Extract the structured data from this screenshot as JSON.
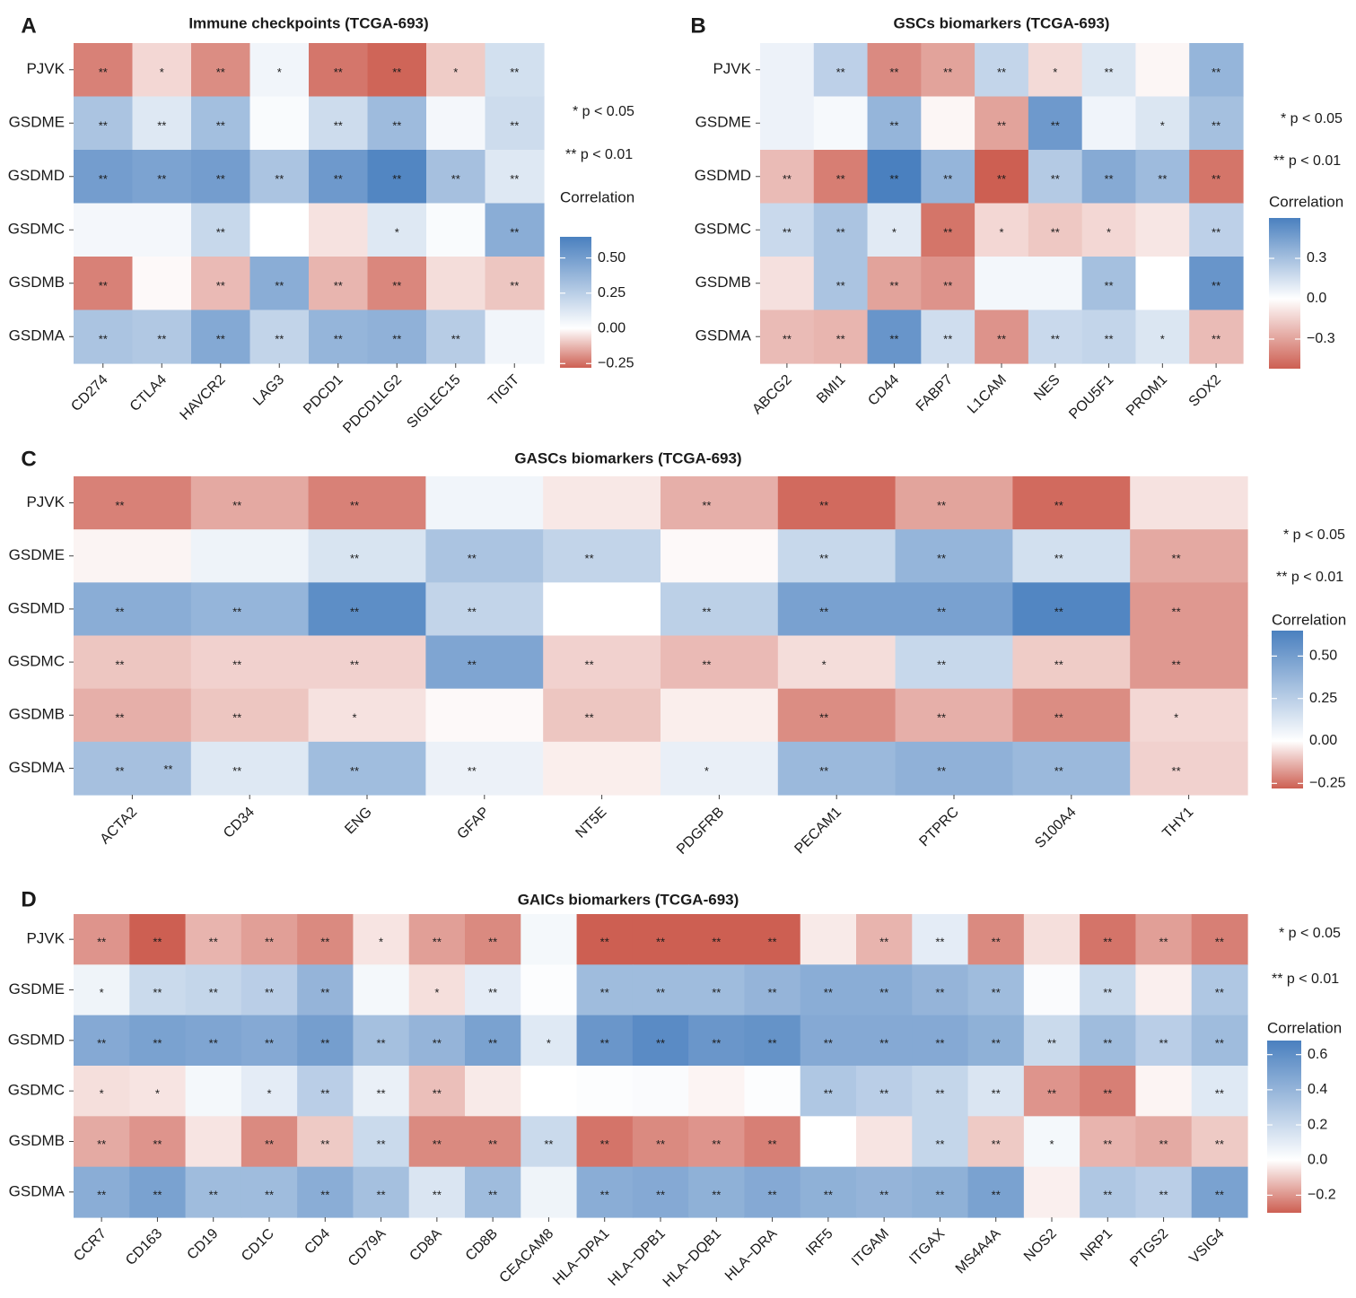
{
  "chart_data": [
    {
      "type": "heatmap",
      "panel_label": "A",
      "title": "Immune checkpoints (TCGA-693)",
      "rows": [
        "PJVK",
        "GSDME",
        "GSDMD",
        "GSDMC",
        "GSDMB",
        "GSDMA"
      ],
      "columns": [
        "CD274",
        "CTLA4",
        "HAVCR2",
        "LAG3",
        "PDCD1",
        "PDCD1LG2",
        "SIGLEC15",
        "TIGIT"
      ],
      "values": [
        [
          -0.22,
          -0.07,
          -0.2,
          0.05,
          -0.24,
          -0.27,
          -0.09,
          0.16
        ],
        [
          0.3,
          0.12,
          0.33,
          0.02,
          0.18,
          0.35,
          0.04,
          0.18
        ],
        [
          0.5,
          0.47,
          0.5,
          0.3,
          0.52,
          0.62,
          0.32,
          0.12
        ],
        [
          0.04,
          0.04,
          0.2,
          0.0,
          -0.05,
          0.12,
          0.02,
          0.42
        ],
        [
          -0.22,
          -0.01,
          -0.12,
          0.42,
          -0.13,
          -0.21,
          -0.06,
          -0.1
        ],
        [
          0.3,
          0.28,
          0.44,
          0.22,
          0.38,
          0.4,
          0.26,
          0.05
        ]
      ],
      "stars": [
        [
          "**",
          "*",
          "**",
          "*",
          "**",
          "**",
          "*",
          "**"
        ],
        [
          "**",
          "**",
          "**",
          "",
          "**",
          "**",
          "",
          "**"
        ],
        [
          "**",
          "**",
          "**",
          "**",
          "**",
          "**",
          "**",
          "**"
        ],
        [
          "",
          "",
          "**",
          "",
          "",
          "*",
          "",
          "**"
        ],
        [
          "**",
          "",
          "**",
          "**",
          "**",
          "**",
          "",
          "**"
        ],
        [
          "**",
          "**",
          "**",
          "**",
          "**",
          "**",
          "**",
          ""
        ]
      ],
      "legend": {
        "title": "Correlation",
        "ticks": [
          0.5,
          0.25,
          0.0,
          -0.25
        ],
        "tick_labels": [
          "0.50",
          "0.25",
          "0.00",
          "−0.25"
        ],
        "range": [
          -0.28,
          0.65
        ],
        "sig_notes": [
          "* p < 0.05",
          "** p < 0.01"
        ]
      }
    },
    {
      "type": "heatmap",
      "panel_label": "B",
      "title": "GSCs biomarkers (TCGA-693)",
      "rows": [
        "PJVK",
        "GSDME",
        "GSDMD",
        "GSDMC",
        "GSDMB",
        "GSDMA"
      ],
      "columns": [
        "ABCG2",
        "BMI1",
        "CD44",
        "FABP7",
        "L1CAM",
        "NES",
        "POU5F1",
        "PROM1",
        "SOX2"
      ],
      "values": [
        [
          0.06,
          0.22,
          -0.38,
          -0.3,
          0.2,
          -0.12,
          0.12,
          -0.03,
          0.35
        ],
        [
          0.06,
          0.03,
          0.35,
          -0.03,
          -0.3,
          0.48,
          0.05,
          0.12,
          0.3
        ],
        [
          -0.22,
          -0.42,
          0.6,
          0.35,
          -0.52,
          0.25,
          0.4,
          0.32,
          -0.45
        ],
        [
          0.18,
          0.28,
          0.1,
          -0.45,
          -0.13,
          -0.18,
          -0.13,
          -0.08,
          0.22
        ],
        [
          -0.1,
          0.28,
          -0.3,
          -0.35,
          0.04,
          0.04,
          0.3,
          0.0,
          0.5
        ],
        [
          -0.22,
          -0.24,
          0.5,
          0.16,
          -0.35,
          0.18,
          0.2,
          0.12,
          -0.22
        ]
      ],
      "stars": [
        [
          "",
          "**",
          "**",
          "**",
          "**",
          "*",
          "**",
          "",
          "**"
        ],
        [
          "",
          "",
          "**",
          "",
          "**",
          "**",
          "",
          "*",
          "**"
        ],
        [
          "**",
          "**",
          "**",
          "**",
          "**",
          "**",
          "**",
          "**",
          "**"
        ],
        [
          "**",
          "**",
          "*",
          "**",
          "*",
          "**",
          "*",
          "",
          "**"
        ],
        [
          "",
          "**",
          "**",
          "**",
          "",
          "",
          "**",
          "",
          "**"
        ],
        [
          "**",
          "**",
          "**",
          "**",
          "**",
          "**",
          "**",
          "*",
          "**"
        ]
      ],
      "legend": {
        "title": "Correlation",
        "ticks": [
          0.3,
          0.0,
          -0.3
        ],
        "tick_labels": [
          "0.3",
          "0.0",
          "−0.3"
        ],
        "range": [
          -0.52,
          0.6
        ],
        "sig_notes": [
          "* p < 0.05",
          "** p < 0.01"
        ]
      }
    },
    {
      "type": "heatmap",
      "panel_label": "C",
      "title": "GASCs biomarkers (TCGA-693)",
      "rows": [
        "PJVK",
        "GSDME",
        "GSDMD",
        "GSDMC",
        "GSDMB",
        "GSDMA"
      ],
      "columns": [
        "ACTA2",
        "CD34",
        "ENG",
        "GFAP",
        "NT5E",
        "PDGFRB",
        "PECAM1",
        "PTPRC",
        "S100A4",
        "THY1"
      ],
      "values": [
        [
          -0.22,
          -0.15,
          -0.22,
          0.05,
          -0.04,
          -0.14,
          -0.26,
          -0.16,
          -0.26,
          -0.05
        ],
        [
          -0.02,
          0.06,
          0.14,
          0.3,
          0.22,
          -0.01,
          0.2,
          0.38,
          0.16,
          -0.15
        ],
        [
          0.42,
          0.38,
          0.58,
          0.22,
          0.0,
          0.24,
          0.48,
          0.48,
          0.62,
          -0.18
        ],
        [
          -0.1,
          -0.08,
          -0.08,
          0.46,
          -0.08,
          -0.12,
          -0.06,
          0.2,
          -0.09,
          -0.18
        ],
        [
          -0.14,
          -0.1,
          -0.05,
          -0.01,
          -0.1,
          -0.03,
          -0.2,
          -0.14,
          -0.2,
          -0.07
        ],
        [
          0.32,
          0.12,
          0.34,
          0.07,
          -0.03,
          0.08,
          0.36,
          0.4,
          0.36,
          -0.08
        ]
      ],
      "stars": [
        [
          "**",
          "**",
          "**",
          "",
          "",
          "**",
          "**",
          "**",
          "**",
          ""
        ],
        [
          "",
          "",
          "**",
          "**",
          "**",
          "",
          "**",
          "**",
          "**",
          "**"
        ],
        [
          "**",
          "**",
          "**",
          "**",
          "",
          "**",
          "**",
          "**",
          "**",
          "**"
        ],
        [
          "**",
          "**",
          "**",
          "**",
          "**",
          "**",
          "*",
          "**",
          "**",
          "**"
        ],
        [
          "**",
          "**",
          "*",
          "",
          "**",
          "",
          "**",
          "**",
          "**",
          "*"
        ],
        [
          "**",
          "**",
          "**",
          "**",
          "",
          "*",
          "**",
          "**",
          "**",
          "**"
        ]
      ],
      "extra_star": "**",
      "legend": {
        "title": "Correlation",
        "ticks": [
          0.5,
          0.25,
          0.0,
          -0.25
        ],
        "tick_labels": [
          "0.50",
          "0.25",
          "0.00",
          "−0.25"
        ],
        "range": [
          -0.28,
          0.65
        ],
        "sig_notes": [
          "* p < 0.05",
          "** p < 0.01"
        ]
      }
    },
    {
      "type": "heatmap",
      "panel_label": "D",
      "title": "GAICs biomarkers (TCGA-693)",
      "rows": [
        "PJVK",
        "GSDME",
        "GSDMD",
        "GSDMC",
        "GSDMB",
        "GSDMA"
      ],
      "columns": [
        "CCR7",
        "CD163",
        "CD19",
        "CD1C",
        "CD4",
        "CD79A",
        "CD8A",
        "CD8B",
        "CEACAM8",
        "HLA−DPA1",
        "HLA−DPB1",
        "HLA−DQB1",
        "HLA−DRA",
        "IRF5",
        "ITGAM",
        "ITGAX",
        "MS4A4A",
        "NOS2",
        "NRP1",
        "PTGS2",
        "VSIG4"
      ],
      "values": [
        [
          -0.2,
          -0.3,
          -0.14,
          -0.18,
          -0.22,
          -0.05,
          -0.18,
          -0.22,
          0.04,
          -0.3,
          -0.3,
          -0.3,
          -0.3,
          -0.04,
          -0.14,
          0.1,
          -0.22,
          -0.06,
          -0.26,
          -0.18,
          -0.24
        ],
        [
          0.06,
          0.2,
          0.22,
          0.26,
          0.4,
          0.04,
          -0.06,
          0.1,
          0.01,
          0.36,
          0.36,
          0.36,
          0.4,
          0.44,
          0.44,
          0.4,
          0.36,
          0.02,
          0.2,
          -0.03,
          0.3
        ],
        [
          0.46,
          0.5,
          0.48,
          0.46,
          0.52,
          0.34,
          0.4,
          0.5,
          0.12,
          0.56,
          0.62,
          0.56,
          0.58,
          0.46,
          0.46,
          0.46,
          0.42,
          0.2,
          0.36,
          0.26,
          0.36
        ],
        [
          -0.06,
          -0.05,
          0.04,
          0.1,
          0.26,
          0.08,
          -0.12,
          -0.04,
          0.0,
          0.01,
          0.02,
          -0.02,
          0.01,
          0.3,
          0.26,
          0.22,
          0.14,
          -0.2,
          -0.24,
          -0.02,
          0.12
        ],
        [
          -0.16,
          -0.2,
          -0.05,
          -0.22,
          -0.1,
          0.2,
          -0.22,
          -0.22,
          0.2,
          -0.26,
          -0.22,
          -0.2,
          -0.24,
          0.0,
          -0.05,
          0.22,
          -0.1,
          0.04,
          -0.14,
          -0.16,
          -0.1
        ],
        [
          0.44,
          0.5,
          0.36,
          0.36,
          0.44,
          0.34,
          0.14,
          0.36,
          0.06,
          0.44,
          0.46,
          0.42,
          0.46,
          0.42,
          0.4,
          0.42,
          0.5,
          -0.03,
          0.3,
          0.26,
          0.5
        ]
      ],
      "stars": [
        [
          "**",
          "**",
          "**",
          "**",
          "**",
          "*",
          "**",
          "**",
          "",
          "**",
          "**",
          "**",
          "**",
          "",
          "**",
          "**",
          "**",
          "",
          "**",
          "**",
          "**"
        ],
        [
          "*",
          "**",
          "**",
          "**",
          "**",
          "",
          "*",
          "**",
          "",
          "**",
          "**",
          "**",
          "**",
          "**",
          "**",
          "**",
          "**",
          "",
          "**",
          "",
          "**"
        ],
        [
          "**",
          "**",
          "**",
          "**",
          "**",
          "**",
          "**",
          "**",
          "*",
          "**",
          "**",
          "**",
          "**",
          "**",
          "**",
          "**",
          "**",
          "**",
          "**",
          "**",
          "**"
        ],
        [
          "*",
          "*",
          "",
          "*",
          "**",
          "**",
          "**",
          "",
          "",
          "",
          "",
          "",
          "",
          "**",
          "**",
          "**",
          "**",
          "**",
          "**",
          "",
          "**"
        ],
        [
          "**",
          "**",
          "",
          "**",
          "**",
          "**",
          "**",
          "**",
          "**",
          "**",
          "**",
          "**",
          "**",
          "",
          "",
          "**",
          "**",
          "*",
          "**",
          "**",
          "**"
        ],
        [
          "**",
          "**",
          "**",
          "**",
          "**",
          "**",
          "**",
          "**",
          "",
          "**",
          "**",
          "**",
          "**",
          "**",
          "**",
          "**",
          "**",
          "",
          "**",
          "**",
          "**"
        ]
      ],
      "legend": {
        "title": "Correlation",
        "ticks": [
          0.6,
          0.4,
          0.2,
          0.0,
          -0.2
        ],
        "tick_labels": [
          "0.6",
          "0.4",
          "0.2",
          "0.0",
          "−0.2"
        ],
        "range": [
          -0.3,
          0.68
        ],
        "sig_notes": [
          "* p < 0.05",
          "** p < 0.01"
        ]
      }
    }
  ],
  "colors": {
    "negative": "#cd5f52",
    "neutral": "#ffffff",
    "positive": "#4a80bf",
    "text": "#1a1a1a"
  }
}
